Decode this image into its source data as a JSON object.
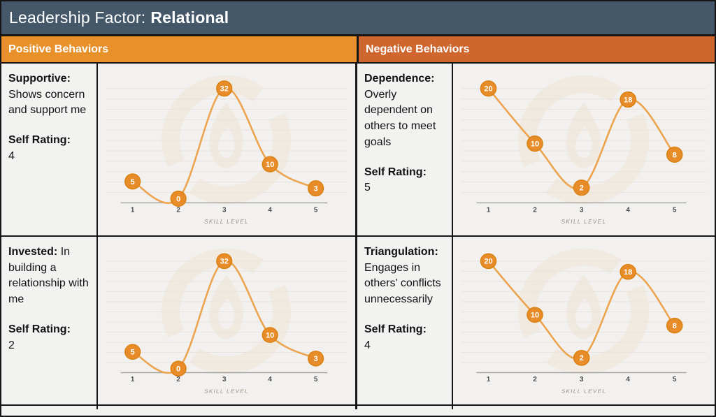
{
  "title": {
    "prefix": "Leadership Factor:",
    "factor": "Relational"
  },
  "column_headers": {
    "positive": "Positive Behaviors",
    "negative": "Negative Behaviors"
  },
  "cells": [
    {
      "trait": "Supportive:",
      "description": "Shows concern and support me",
      "rating_label": "Self Rating:",
      "rating": "4"
    },
    {
      "trait": "Dependence:",
      "description": "Overly dependent on others to meet goals",
      "rating_label": "Self Rating:",
      "rating": "5"
    },
    {
      "trait": "Invested:",
      "description": "In building a relationship with me",
      "rating_label": "Self Rating:",
      "rating": "2"
    },
    {
      "trait": "Triangulation:",
      "description": "Engages in others’ conflicts unnecessarily",
      "rating_label": "Self Rating:",
      "rating": "4"
    }
  ],
  "axis": {
    "xlabel": "SKILL LEVEL",
    "ticks": [
      "1",
      "2",
      "3",
      "4",
      "5"
    ]
  },
  "chart_data": [
    {
      "type": "line",
      "name": "supportive-skill-curve",
      "x": [
        1,
        2,
        3,
        4,
        5
      ],
      "values": [
        5,
        0,
        32,
        10,
        3
      ],
      "point_labels": [
        "5",
        "0",
        "32",
        "10",
        "3"
      ],
      "title": "",
      "xlabel": "SKILL LEVEL",
      "ylabel": "",
      "ylim": [
        0,
        32
      ],
      "grid": true,
      "legend": "none"
    },
    {
      "type": "line",
      "name": "dependence-skill-curve",
      "x": [
        1,
        2,
        3,
        4,
        5
      ],
      "values": [
        20,
        10,
        2,
        18,
        8
      ],
      "point_labels": [
        "20",
        "10",
        "2",
        "18",
        "8"
      ],
      "title": "",
      "xlabel": "SKILL LEVEL",
      "ylabel": "",
      "ylim": [
        0,
        20
      ],
      "grid": true,
      "legend": "none"
    },
    {
      "type": "line",
      "name": "invested-skill-curve",
      "x": [
        1,
        2,
        3,
        4,
        5
      ],
      "values": [
        5,
        0,
        32,
        10,
        3
      ],
      "point_labels": [
        "5",
        "0",
        "32",
        "10",
        "3"
      ],
      "title": "",
      "xlabel": "SKILL LEVEL",
      "ylabel": "",
      "ylim": [
        0,
        32
      ],
      "grid": true,
      "legend": "none"
    },
    {
      "type": "line",
      "name": "triangulation-skill-curve",
      "x": [
        1,
        2,
        3,
        4,
        5
      ],
      "values": [
        20,
        10,
        2,
        18,
        8
      ],
      "point_labels": [
        "20",
        "10",
        "2",
        "18",
        "8"
      ],
      "title": "",
      "xlabel": "SKILL LEVEL",
      "ylabel": "",
      "ylim": [
        0,
        20
      ],
      "grid": true,
      "legend": "none"
    }
  ],
  "icons": {
    "watermark": "flame-logo-watermark"
  },
  "colors": {
    "title_bar": "#45586A",
    "positive_header": "#E8912B",
    "negative_header": "#CE662E",
    "cell_background": "#F2F2F0",
    "chart_background": "#F2F1EF",
    "border": "#161616",
    "line_orange": "#ECA44F",
    "marker_orange": "#E78C28",
    "marker_ring": "#D9800F",
    "watermark_cream": "#EFE3D2"
  }
}
